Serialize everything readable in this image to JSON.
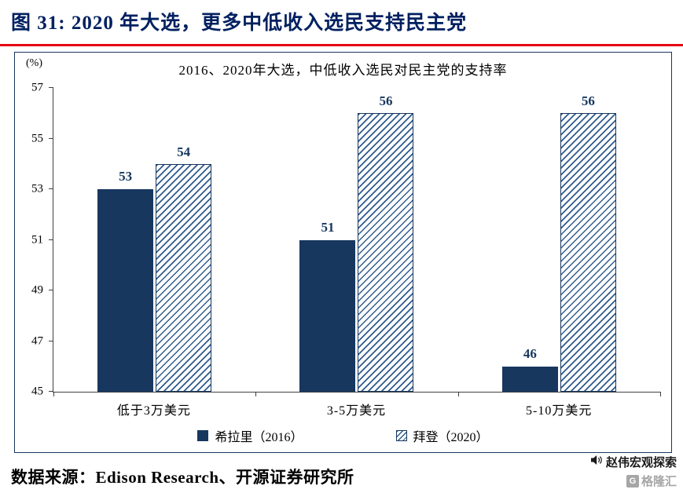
{
  "header": {
    "title": "图 31:  2020 年大选，更多中低收入选民支持民主党"
  },
  "chart": {
    "unit_label": "(%)",
    "title": "2016、2020年大选，中低收入选民对民主党的支持率"
  },
  "chart_data": {
    "type": "bar",
    "title": "2016、2020年大选，中低收入选民对民主党的支持率",
    "categories": [
      "低于3万美元",
      "3-5万美元",
      "5-10万美元"
    ],
    "series": [
      {
        "name": "希拉里（2016）",
        "style": "solid",
        "values": [
          53,
          51,
          46
        ]
      },
      {
        "name": "拜登（2020）",
        "style": "hatched",
        "values": [
          54,
          56,
          56
        ]
      }
    ],
    "xlabel": "",
    "ylabel": "(%)",
    "ylim": [
      45,
      57
    ],
    "yticks": [
      57,
      55,
      53,
      51,
      49,
      47,
      45
    ],
    "grid": false,
    "legend_position": "bottom",
    "data_labels": true
  },
  "footer": {
    "source": "数据来源：Edison Research、开源证券研究所"
  },
  "watermark": {
    "text": "赵伟宏观探索",
    "logo_mark": "G",
    "logo_text": "格隆汇"
  },
  "colors": {
    "bar_navy": "#17375E",
    "title_navy": "#002060",
    "divider_red": "#e50012",
    "logo_grey": "#a6a6a6",
    "value_label": "#17375E"
  }
}
